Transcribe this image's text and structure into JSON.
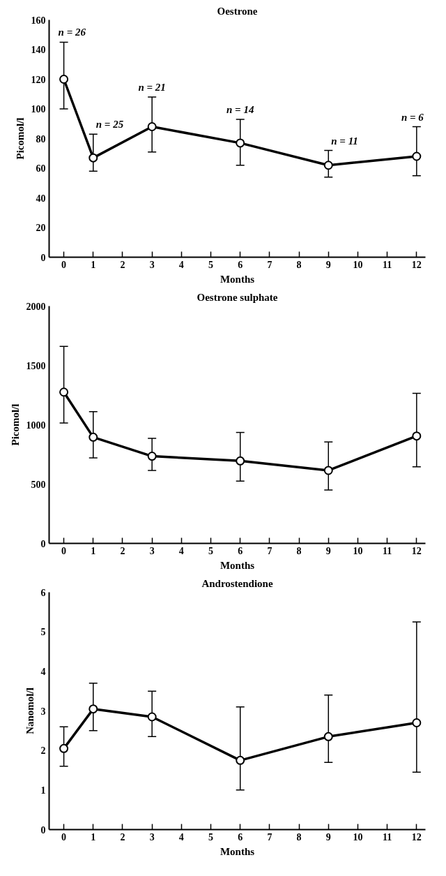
{
  "chart_data": [
    {
      "type": "line",
      "title": "Oestrone",
      "xlabel": "Months",
      "ylabel": "Picomol/l",
      "x": [
        0,
        1,
        3,
        6,
        9,
        12
      ],
      "series": [
        {
          "color": "#000000",
          "values": [
            120,
            67,
            88,
            77,
            62,
            68
          ],
          "errors": [
            [
              100,
              145
            ],
            [
              58,
              83
            ],
            [
              71,
              108
            ],
            [
              62,
              93
            ],
            [
              54,
              72
            ],
            [
              55,
              88
            ]
          ]
        }
      ],
      "xlim": [
        -0.5,
        12.3
      ],
      "xticks": [
        0,
        1,
        2,
        3,
        4,
        5,
        6,
        7,
        8,
        9,
        10,
        11,
        12
      ],
      "ylim": [
        0,
        160
      ],
      "yticks": [
        0,
        20,
        40,
        60,
        80,
        100,
        120,
        140,
        160
      ],
      "annotations": [
        "n = 26",
        "n = 25",
        "n = 21",
        "n = 14",
        "n = 11",
        "n = 6"
      ],
      "marker": "circle",
      "grid": false
    },
    {
      "type": "line",
      "title": "Oestrone sulphate",
      "xlabel": "Months",
      "ylabel": "Picomol/l",
      "x": [
        0,
        1,
        3,
        6,
        9,
        12
      ],
      "series": [
        {
          "color": "#000000",
          "values": [
            1275,
            895,
            735,
            695,
            615,
            905
          ],
          "errors": [
            [
              1015,
              1660
            ],
            [
              720,
              1110
            ],
            [
              615,
              885
            ],
            [
              525,
              935
            ],
            [
              450,
              855
            ],
            [
              645,
              1265
            ]
          ]
        }
      ],
      "xlim": [
        -0.5,
        12.3
      ],
      "xticks": [
        0,
        1,
        2,
        3,
        4,
        5,
        6,
        7,
        8,
        9,
        10,
        11,
        12
      ],
      "ylim": [
        0,
        2000
      ],
      "yticks": [
        0,
        500,
        1000,
        1500,
        2000
      ],
      "marker": "circle",
      "grid": false
    },
    {
      "type": "line",
      "title": "Androstendione",
      "xlabel": "Months",
      "ylabel": "Nanomol/l",
      "x": [
        0,
        1,
        3,
        6,
        9,
        12
      ],
      "series": [
        {
          "color": "#000000",
          "values": [
            2.05,
            3.05,
            2.85,
            1.75,
            2.35,
            2.7
          ],
          "errors": [
            [
              1.6,
              2.6
            ],
            [
              2.5,
              3.7
            ],
            [
              2.35,
              3.5
            ],
            [
              1.0,
              3.1
            ],
            [
              1.7,
              3.4
            ],
            [
              1.45,
              5.25
            ]
          ]
        }
      ],
      "xlim": [
        -0.5,
        12.3
      ],
      "xticks": [
        0,
        1,
        2,
        3,
        4,
        5,
        6,
        7,
        8,
        9,
        10,
        11,
        12
      ],
      "ylim": [
        0,
        6
      ],
      "yticks": [
        0,
        1,
        2,
        3,
        4,
        5,
        6
      ],
      "marker": "circle",
      "grid": false
    }
  ]
}
